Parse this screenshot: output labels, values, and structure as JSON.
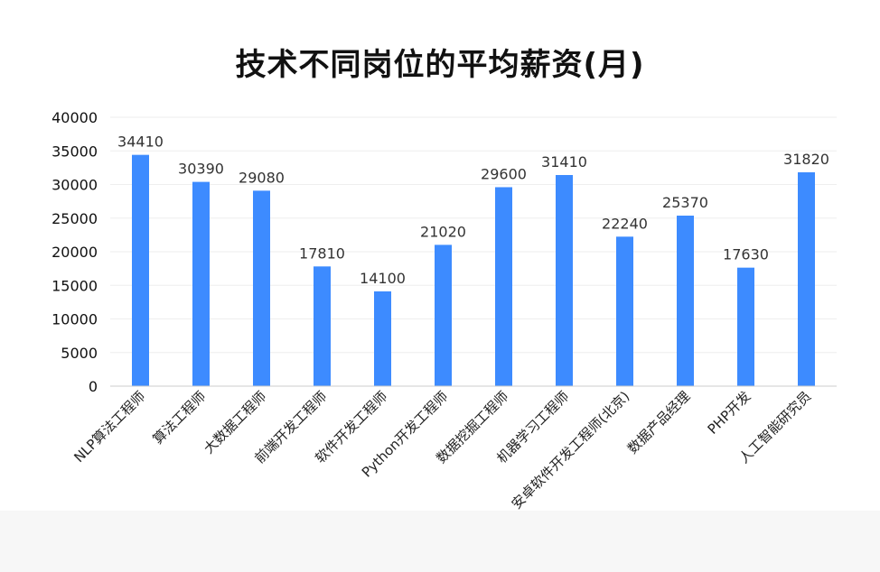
{
  "chart_data": {
    "type": "bar",
    "title": "技术不同岗位的平均薪资(月)",
    "categories": [
      "NLP算法工程师",
      "算法工程师",
      "大数据工程师",
      "前端开发工程师",
      "软件开发工程师",
      "Python开发工程师",
      "数据挖掘工程师",
      "机器学习工程师",
      "安卓软件开发工程师(北京)",
      "数据产品经理",
      "PHP开发",
      "人工智能研究员"
    ],
    "values": [
      34410,
      30390,
      29080,
      17810,
      14100,
      21020,
      29600,
      31410,
      22240,
      25370,
      17630,
      31820
    ],
    "ylim": [
      0,
      40000
    ],
    "yticks": [
      0,
      5000,
      10000,
      15000,
      20000,
      25000,
      30000,
      35000,
      40000
    ],
    "xlabel": "",
    "ylabel": "",
    "grid": true,
    "bar_color": "#3d8bff"
  }
}
